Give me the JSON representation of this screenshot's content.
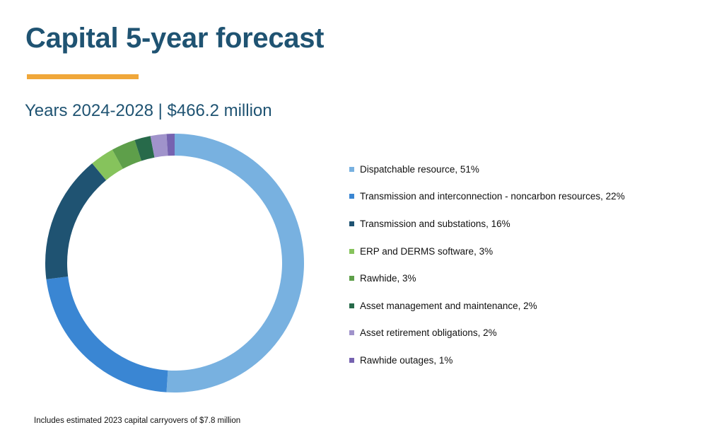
{
  "header": {
    "title": "Capital 5-year forecast",
    "subtitle": "Years 2024-2028 | $466.2 million",
    "accent_color": "#f0a73a"
  },
  "chart_data": {
    "type": "pie",
    "variant": "donut",
    "start_angle": "top, clockwise",
    "legend_position": "right",
    "slices": [
      {
        "label": "Dispatchable resource, 51%",
        "name": "Dispatchable resource",
        "value": 51,
        "color": "#78b1e0"
      },
      {
        "label": "Transmission and interconnection - noncarbon resources, 22%",
        "name": "Transmission and interconnection - noncarbon resources",
        "value": 22,
        "color": "#3a86d3"
      },
      {
        "label": "Transmission and substations, 16%",
        "name": "Transmission and substations",
        "value": 16,
        "color": "#1f5372"
      },
      {
        "label": "ERP and DERMS software, 3%",
        "name": "ERP and DERMS software",
        "value": 3,
        "color": "#86c35c"
      },
      {
        "label": "Rawhide, 3%",
        "name": "Rawhide",
        "value": 3,
        "color": "#5e9f4a"
      },
      {
        "label": "Asset management and maintenance, 2%",
        "name": "Asset management and maintenance",
        "value": 2,
        "color": "#276a4a"
      },
      {
        "label": "Asset retirement obligations, 2%",
        "name": "Asset retirement obligations",
        "value": 2,
        "color": "#a093cb"
      },
      {
        "label": "Rawhide outages, 1%",
        "name": "Rawhide outages",
        "value": 1,
        "color": "#7663b0"
      }
    ]
  },
  "footnote": "Includes estimated 2023 capital carryovers of $7.8 million"
}
